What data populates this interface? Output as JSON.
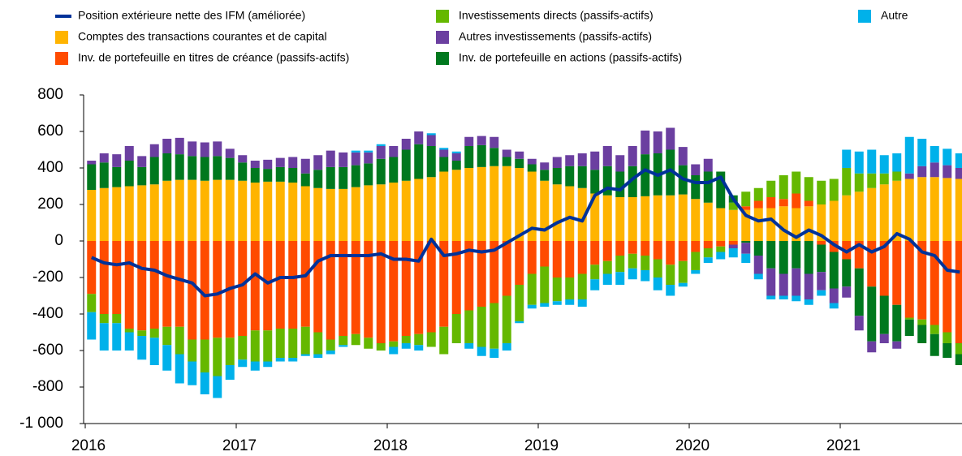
{
  "chart_data": {
    "type": "bar",
    "categories": [
      "2016",
      null,
      null,
      null,
      null,
      null,
      null,
      null,
      null,
      null,
      null,
      null,
      "2017",
      null,
      null,
      null,
      null,
      null,
      null,
      null,
      null,
      null,
      null,
      null,
      "2018",
      null,
      null,
      null,
      null,
      null,
      null,
      null,
      null,
      null,
      null,
      null,
      "2019",
      null,
      null,
      null,
      null,
      null,
      null,
      null,
      null,
      null,
      null,
      null,
      "2020",
      null,
      null,
      null,
      null,
      null,
      null,
      null,
      null,
      null,
      null,
      null,
      "2021",
      null,
      null,
      null,
      null,
      null,
      null,
      null,
      null,
      null
    ],
    "ylim": [
      -1000,
      800
    ],
    "yticks": [
      {
        "value": -1000,
        "label": "-1 000"
      },
      -800,
      -600,
      -400,
      -200,
      0,
      200,
      400,
      600,
      800
    ],
    "series": [
      {
        "name": "Position extérieure nette des IFM (améliorée)",
        "type": "line",
        "color": "#003299",
        "values": [
          -90,
          -120,
          -130,
          -120,
          -150,
          -160,
          -190,
          -210,
          -230,
          -300,
          -290,
          -260,
          -240,
          -180,
          -230,
          -200,
          -200,
          -190,
          -110,
          -80,
          -80,
          -80,
          -80,
          -70,
          -100,
          -100,
          -110,
          10,
          -80,
          -70,
          -50,
          -60,
          -50,
          -10,
          30,
          70,
          60,
          100,
          130,
          110,
          250,
          290,
          280,
          340,
          390,
          360,
          390,
          340,
          320,
          320,
          350,
          230,
          140,
          110,
          120,
          60,
          20,
          60,
          30,
          -20,
          -60,
          -20,
          -60,
          -30,
          40,
          10,
          -60,
          -80,
          -160,
          -170
        ]
      },
      {
        "name": "Comptes des transactions courantes et de capital",
        "type": "bar",
        "color": "#FFB400",
        "values": [
          280,
          290,
          295,
          300,
          305,
          310,
          330,
          335,
          335,
          330,
          335,
          335,
          330,
          320,
          325,
          325,
          320,
          300,
          290,
          285,
          285,
          295,
          305,
          310,
          320,
          330,
          340,
          350,
          380,
          390,
          400,
          405,
          410,
          410,
          400,
          380,
          330,
          310,
          300,
          290,
          260,
          250,
          240,
          240,
          245,
          250,
          250,
          255,
          230,
          210,
          180,
          170,
          170,
          180,
          180,
          190,
          180,
          190,
          200,
          220,
          250,
          270,
          290,
          310,
          330,
          340,
          350,
          350,
          345,
          340
        ]
      },
      {
        "name": "Inv. de portefeuille en titres de créance (passifs-actifs)",
        "type": "bar",
        "color": "#FF4B00",
        "values": [
          -290,
          -400,
          -400,
          -480,
          -490,
          -480,
          -470,
          -470,
          -540,
          -540,
          -530,
          -530,
          -520,
          -490,
          -490,
          -480,
          -480,
          -470,
          -500,
          -540,
          -520,
          -510,
          -530,
          -560,
          -550,
          -520,
          -510,
          -500,
          -470,
          -400,
          -380,
          -360,
          -340,
          -300,
          -240,
          -180,
          -140,
          -200,
          -200,
          -180,
          -130,
          -110,
          -80,
          -70,
          -80,
          -100,
          -130,
          -110,
          -60,
          -40,
          -30,
          -20,
          20,
          40,
          60,
          40,
          80,
          30,
          -20,
          -60,
          -100,
          -150,
          -250,
          -300,
          -350,
          -420,
          -430,
          -460,
          -500,
          -560
        ]
      },
      {
        "name": "Investissements directs (passifs-actifs)",
        "type": "bar",
        "color": "#65B800",
        "values": [
          -100,
          -50,
          -50,
          -20,
          -30,
          -50,
          -100,
          -150,
          -120,
          -180,
          -210,
          -150,
          -130,
          -170,
          -170,
          -160,
          -160,
          -150,
          -120,
          -60,
          -50,
          -60,
          -60,
          -40,
          -30,
          -40,
          -60,
          -80,
          -150,
          -160,
          -180,
          -220,
          -250,
          -260,
          -200,
          -170,
          -200,
          -130,
          -120,
          -140,
          -80,
          -70,
          -90,
          -80,
          -80,
          -100,
          -110,
          -120,
          -100,
          -50,
          -30,
          40,
          80,
          70,
          90,
          130,
          120,
          130,
          130,
          120,
          150,
          100,
          80,
          60,
          50,
          -10,
          -30,
          -50,
          -60,
          -60
        ]
      },
      {
        "name": "Autres investissements (passifs-actifs)",
        "type": "bar",
        "color": "#6B3FA0",
        "values": [
          20,
          50,
          70,
          80,
          60,
          70,
          80,
          90,
          80,
          80,
          80,
          50,
          40,
          40,
          50,
          50,
          60,
          80,
          80,
          90,
          80,
          70,
          60,
          70,
          60,
          60,
          70,
          60,
          40,
          40,
          50,
          50,
          60,
          40,
          40,
          30,
          40,
          60,
          60,
          70,
          100,
          110,
          90,
          110,
          130,
          120,
          120,
          100,
          60,
          70,
          0,
          -20,
          -60,
          -100,
          -150,
          -120,
          -150,
          -140,
          -100,
          -80,
          -60,
          -80,
          -60,
          -50,
          -40,
          30,
          60,
          80,
          70,
          60
        ]
      },
      {
        "name": "Inv. de portefeuille en actions (passifs-actifs)",
        "type": "bar",
        "color": "#00781E",
        "values": [
          140,
          140,
          110,
          140,
          100,
          150,
          150,
          140,
          130,
          130,
          130,
          120,
          100,
          80,
          70,
          80,
          80,
          70,
          100,
          120,
          120,
          120,
          120,
          140,
          140,
          170,
          190,
          170,
          80,
          50,
          120,
          120,
          100,
          50,
          50,
          40,
          60,
          90,
          110,
          120,
          130,
          160,
          140,
          170,
          230,
          230,
          250,
          160,
          130,
          170,
          200,
          40,
          -10,
          -80,
          -150,
          -180,
          -150,
          -180,
          -150,
          -200,
          -150,
          -260,
          -300,
          -210,
          -200,
          -90,
          -100,
          -120,
          -80,
          -60
        ]
      },
      {
        "name": "Autre",
        "type": "bar",
        "color": "#00B1EA",
        "values": [
          -150,
          -150,
          -150,
          -100,
          -130,
          -150,
          -140,
          -160,
          -130,
          -120,
          -120,
          -80,
          -40,
          -50,
          -30,
          -20,
          -20,
          -10,
          -20,
          -20,
          -10,
          10,
          10,
          10,
          -40,
          -30,
          -30,
          10,
          10,
          10,
          -30,
          -50,
          -50,
          -40,
          -10,
          -20,
          -20,
          -20,
          -30,
          -40,
          -60,
          -60,
          -70,
          -60,
          -60,
          -70,
          -60,
          -20,
          -20,
          -30,
          -40,
          -50,
          -50,
          -30,
          -20,
          -20,
          -30,
          -30,
          -30,
          -30,
          100,
          120,
          130,
          100,
          100,
          200,
          150,
          90,
          90,
          80
        ]
      }
    ]
  }
}
